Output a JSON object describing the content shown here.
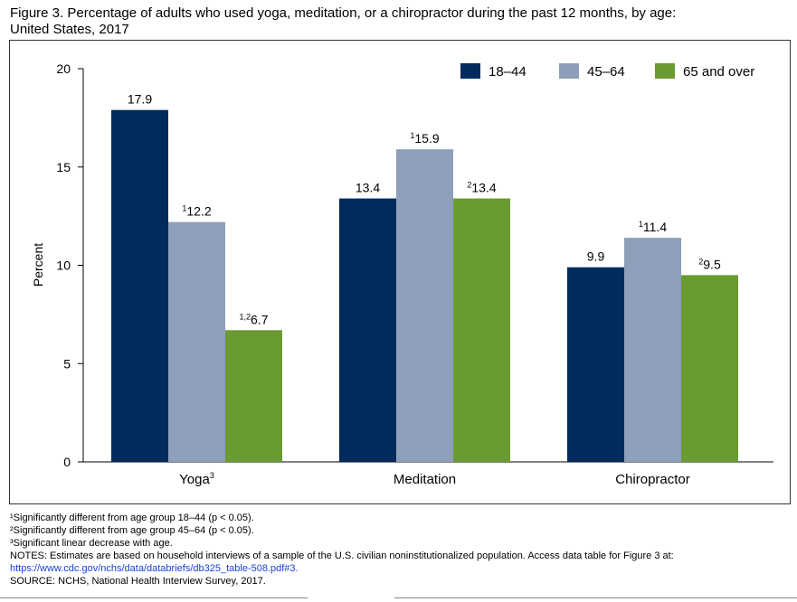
{
  "title_line1": "Figure 3. Percentage of adults who used yoga, meditation, or a chiropractor during the past 12 months, by age:",
  "title_line2": "United States, 2017",
  "chart_data": {
    "type": "bar",
    "ylabel": "Percent",
    "ylim": [
      0,
      20
    ],
    "yticks": [
      0,
      5,
      10,
      15,
      20
    ],
    "categories": [
      "Yoga",
      "Meditation",
      "Chiropractor"
    ],
    "category_superscripts": [
      "3",
      "",
      ""
    ],
    "legend_position": "top-right",
    "grid": false,
    "series": [
      {
        "name": "18–44",
        "color": "#002B5C",
        "values": [
          17.9,
          13.4,
          9.9
        ],
        "label_superscripts": [
          "",
          "",
          ""
        ]
      },
      {
        "name": "45–64",
        "color": "#8E9FBA",
        "values": [
          12.2,
          15.9,
          11.4
        ],
        "label_superscripts": [
          "1",
          "1",
          "1"
        ]
      },
      {
        "name": "65 and over",
        "color": "#6A9A32",
        "values": [
          6.7,
          13.4,
          9.5
        ],
        "label_superscripts": [
          "1,2",
          "2",
          "2"
        ]
      }
    ]
  },
  "footnotes": {
    "note1": "¹Significantly different from age group 18–44 (p < 0.05).",
    "note2": "²Significantly different from age group 45–64 (p < 0.05).",
    "note3": "³Significant linear decrease with age.",
    "notes_text": "NOTES: Estimates are based on household interviews of a sample of the U.S. civilian noninstitutionalized population. Access data table for Figure 3 at:",
    "notes_link": "https://www.cdc.gov/nchs/data/databriefs/db325_table-508.pdf#3.",
    "source": "SOURCE: NCHS, National Health Interview Survey, 2017."
  }
}
